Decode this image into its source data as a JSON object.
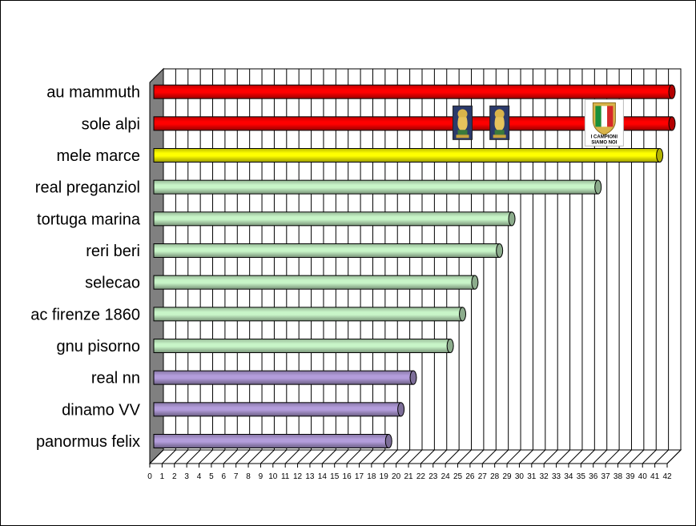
{
  "chart_data": {
    "type": "bar",
    "orientation": "horizontal",
    "title": "",
    "xlabel": "",
    "ylabel": "",
    "xlim": [
      0,
      42
    ],
    "xticks": [
      "0",
      "1",
      "2",
      "3",
      "4",
      "5",
      "6",
      "7",
      "8",
      "9",
      "10",
      "11",
      "12",
      "13",
      "14",
      "15",
      "16",
      "17",
      "18",
      "19",
      "20",
      "21",
      "22",
      "23",
      "24",
      "25",
      "26",
      "27",
      "28",
      "29",
      "30",
      "31",
      "32",
      "33",
      "34",
      "35",
      "36",
      "37",
      "38",
      "39",
      "40",
      "41",
      "42"
    ],
    "grid": "vertical",
    "categories": [
      "au mammuth",
      "sole alpi",
      "mele marce",
      "real preganziol",
      "tortuga marina",
      "reri beri",
      "selecao",
      "ac firenze 1860",
      "gnu pisorno",
      "real nn",
      "dinamo VV",
      "panormus felix"
    ],
    "values": [
      42,
      42,
      41,
      36,
      29,
      28,
      26,
      25,
      24,
      21,
      20,
      19
    ],
    "bar_colors": [
      "#ff0000",
      "#ff0000",
      "#ffff00",
      "#c8f5c8",
      "#c8f5c8",
      "#c8f5c8",
      "#c8f5c8",
      "#c8f5c8",
      "#c8f5c8",
      "#b39ddb",
      "#b39ddb",
      "#b39ddb"
    ],
    "annotations": [
      {
        "name": "world-cup-trophy-icon",
        "row": "sole alpi",
        "at": 25
      },
      {
        "name": "world-cup-trophy-icon",
        "row": "sole alpi",
        "at": 28
      },
      {
        "name": "italian-shield-badge",
        "row": "sole alpi",
        "at": 36.5,
        "text_lines": [
          "I CAMPIONI",
          "SIAMO NOI"
        ]
      }
    ]
  }
}
